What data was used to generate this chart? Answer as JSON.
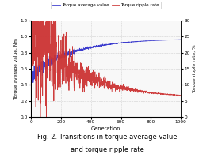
{
  "title_line1": "Fig. 2. Transitions in torque average value",
  "title_line2": "and torque ripple rate",
  "xlabel": "Generation",
  "ylabel_left": "Torque average value, Nm",
  "ylabel_right": "Torque ripple rate, %",
  "legend_labels": [
    "Torque average value",
    "Torque ripple rate"
  ],
  "line_colors": [
    "#3333cc",
    "#cc3333"
  ],
  "xlim": [
    0,
    1000
  ],
  "ylim_left": [
    0,
    1.2
  ],
  "ylim_right": [
    0,
    30
  ],
  "yticks_left": [
    0,
    0.2,
    0.4,
    0.6,
    0.8,
    1.0,
    1.2
  ],
  "yticks_right": [
    0,
    5,
    10,
    15,
    20,
    25,
    30
  ],
  "xticks": [
    0,
    200,
    400,
    600,
    800,
    1000
  ],
  "grid_color": "#cccccc",
  "bg_color": "#f8f8f8",
  "fig_bg": "#ffffff",
  "n_points": 1000,
  "torque_avg_start": 0.52,
  "torque_avg_end": 0.975,
  "torque_avg_tau": 280,
  "torque_avg_noise_amp": 0.065,
  "torque_avg_noise_tau": 180,
  "torque_ripple_start": 27.0,
  "torque_ripple_end": 5.8,
  "torque_ripple_tau": 320,
  "torque_ripple_noise_tau": 170
}
